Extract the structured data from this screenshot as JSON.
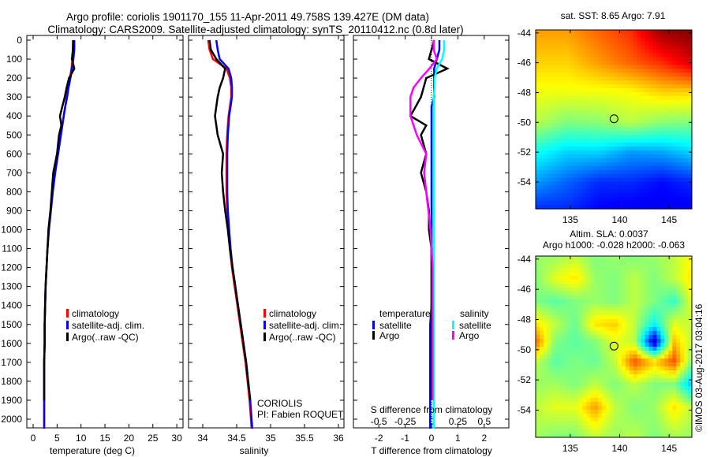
{
  "title": {
    "line1": "Argo profile: coriolis 1901170_155 11-Apr-2011 49.758S 139.427E (DM data)",
    "line2": "Climatology: CARS2009. Satellite-adjusted climatology: synTS_20110412.nc (0.8d later)"
  },
  "colors": {
    "climatology": "#ff0000",
    "satellite": "#0000ff",
    "argo": "#000000",
    "sal_sat": "#00ffff",
    "sal_argo": "#ff00ff"
  },
  "chart_data": [
    {
      "type": "line",
      "name": "temperature",
      "xlabel": "temperature (deg C)",
      "xlim": [
        -1,
        31
      ],
      "xticks": [
        0,
        5,
        10,
        15,
        20,
        25,
        30
      ],
      "ylim": [
        0,
        2050
      ],
      "yticks": [
        0,
        100,
        200,
        300,
        400,
        500,
        600,
        700,
        800,
        900,
        1000,
        1100,
        1200,
        1300,
        1400,
        1500,
        1600,
        1700,
        1800,
        1900,
        2000
      ],
      "depth": [
        0,
        50,
        100,
        150,
        200,
        250,
        300,
        350,
        400,
        450,
        500,
        600,
        700,
        800,
        900,
        1000,
        1100,
        1200,
        1300,
        1400,
        1500,
        1600,
        1700,
        1800,
        1900,
        2000,
        2050
      ],
      "legend": [
        "climatology",
        "satellite-adj. clim.",
        "Argo(..raw -QC)"
      ],
      "series": [
        {
          "name": "climatology",
          "color": "#ff0000",
          "values": [
            8.3,
            8.3,
            8.2,
            8.0,
            7.7,
            7.3,
            7.0,
            6.7,
            6.4,
            6.1,
            5.8,
            5.2,
            4.6,
            4.1,
            3.7,
            3.3,
            3.0,
            2.8,
            2.6,
            2.5,
            2.4,
            2.4,
            2.3,
            2.3,
            2.3,
            2.3,
            2.3
          ]
        },
        {
          "name": "satellite-adj. clim.",
          "color": "#0000ff",
          "values": [
            8.6,
            8.6,
            8.4,
            8.1,
            7.8,
            7.4,
            7.1,
            6.7,
            6.4,
            6.1,
            5.8,
            5.2,
            4.6,
            4.1,
            3.7,
            3.3,
            3.0,
            2.8,
            2.6,
            2.5,
            2.4,
            2.4,
            2.3,
            2.3,
            2.3,
            2.3,
            2.3
          ]
        },
        {
          "name": "Argo(..raw -QC)",
          "color": "#000000",
          "values": [
            8.4,
            8.3,
            8.1,
            8.6,
            7.5,
            7.0,
            6.6,
            6.1,
            5.6,
            5.9,
            5.4,
            5.0,
            4.2,
            3.9,
            3.6,
            3.2,
            3.0,
            2.8,
            2.6,
            2.5,
            2.4,
            2.4,
            2.3,
            2.3,
            2.3
          ]
        }
      ]
    },
    {
      "type": "line",
      "name": "salinity",
      "xlabel": "salinity",
      "xlim": [
        33.8,
        36.1
      ],
      "xticks": [
        34,
        34.5,
        35,
        35.5,
        36
      ],
      "annotation": [
        "CORIOLIS",
        "PI: Fabien ROQUET"
      ],
      "legend": [
        "climatology",
        "satellite-adj. clim.",
        "Argo(..raw -QC)"
      ],
      "series": [
        {
          "name": "climatology",
          "color": "#ff0000",
          "values": [
            34.08,
            34.1,
            34.15,
            34.35,
            34.4,
            34.42,
            34.42,
            34.4,
            34.38,
            34.37,
            34.36,
            34.35,
            34.35,
            34.35,
            34.36,
            34.38,
            34.4,
            34.43,
            34.47,
            34.51,
            34.55,
            34.59,
            34.63,
            34.66,
            34.69,
            34.71,
            34.72
          ]
        },
        {
          "name": "satellite-adj. clim.",
          "color": "#0000ff",
          "values": [
            34.2,
            34.22,
            34.25,
            34.38,
            34.42,
            34.43,
            34.43,
            34.41,
            34.39,
            34.38,
            34.37,
            34.36,
            34.36,
            34.36,
            34.37,
            34.39,
            34.41,
            34.44,
            34.48,
            34.52,
            34.56,
            34.6,
            34.64,
            34.67,
            34.7,
            34.72,
            34.73
          ]
        },
        {
          "name": "Argo(..raw -QC)",
          "color": "#000000",
          "values": [
            34.1,
            34.12,
            34.2,
            34.33,
            34.3,
            34.25,
            34.22,
            34.2,
            34.18,
            34.2,
            34.22,
            34.3,
            34.28,
            34.3,
            34.33,
            34.37,
            34.4,
            34.44,
            34.48,
            34.52,
            34.56,
            34.6,
            34.64,
            34.67,
            34.7
          ]
        }
      ]
    },
    {
      "type": "line",
      "name": "difference",
      "xlabel": "T difference from climatology",
      "x2label": "S difference from climatology",
      "xlim": [
        -3,
        3
      ],
      "xticks": [
        -2,
        -1,
        0,
        1,
        2
      ],
      "x2ticks": [
        "-0.5",
        "-0.25",
        "0",
        "0.25",
        "0.5"
      ],
      "x2values": [
        -0.5,
        -0.25,
        0,
        0.25,
        0.5
      ],
      "legend": {
        "t_head": "temperature",
        "s_head": "salinity",
        "sat": "satellite",
        "argo": "Argo"
      },
      "series": [
        {
          "name": "T satellite",
          "axis": "T",
          "color": "#0000ff",
          "values": [
            0.3,
            0.3,
            0.2,
            0.1,
            0.1,
            0.1,
            0.1,
            0.0,
            0.0,
            0.0,
            0.0,
            0.0,
            0.0,
            0.0,
            0.0,
            0.0,
            0.0,
            0.0,
            0.0,
            0.0,
            -0.05,
            -0.05,
            -0.05,
            -0.05,
            -0.05,
            -0.05,
            -0.05
          ]
        },
        {
          "name": "T Argo",
          "axis": "T",
          "color": "#000000",
          "values": [
            0.1,
            0.0,
            -0.1,
            0.6,
            -0.2,
            -0.3,
            -0.4,
            -0.6,
            -0.8,
            -0.2,
            -0.4,
            -0.2,
            -0.4,
            -0.2,
            -0.1,
            -0.1,
            0,
            0,
            0,
            0,
            0,
            0,
            0,
            0,
            0
          ]
        },
        {
          "name": "S satellite",
          "axis": "S",
          "color": "#00ffff",
          "values": [
            0.12,
            0.12,
            0.1,
            0.05,
            0.03,
            0.03,
            0.02,
            0.02,
            0.02,
            0.02,
            0.02,
            0.02,
            0.02,
            0.02,
            0.02,
            0.02,
            0.02,
            0.02,
            0.02,
            0.02,
            0.02,
            0.02,
            0.02,
            0.02,
            0.02,
            0.02,
            0.02
          ]
        },
        {
          "name": "S Argo",
          "axis": "S",
          "color": "#ff00ff",
          "values": [
            0.02,
            0.02,
            0.05,
            -0.02,
            -0.1,
            -0.17,
            -0.2,
            -0.2,
            -0.2,
            -0.17,
            -0.14,
            -0.05,
            -0.07,
            -0.05,
            -0.03,
            -0.01,
            0,
            0.01,
            0.01,
            0.01,
            0.01,
            0.01,
            0.01,
            0.01,
            0.01
          ]
        }
      ]
    },
    {
      "type": "heatmap",
      "name": "sst-map",
      "title": "sat. SST: 8.65 Argo: 7.91",
      "xticks": [
        135,
        140,
        145
      ],
      "yticks": [
        -44,
        -46,
        -48,
        -50,
        -52,
        -54
      ],
      "xlim": [
        131.5,
        147.3
      ],
      "ylim": [
        -55.8,
        -43.8
      ],
      "vmin": 3,
      "vmax": 12,
      "marker": {
        "lon": 139.427,
        "lat": -49.758
      },
      "lons": [
        131.5,
        134.7,
        137.9,
        141.1,
        144.3,
        147.3
      ],
      "lats": [
        -43.8,
        -46,
        -48,
        -50,
        -52,
        -54,
        -55.8
      ],
      "grid": [
        [
          9.5,
          9.5,
          10,
          10.5,
          11.8,
          12
        ],
        [
          9,
          9,
          9.5,
          10,
          10.5,
          11.2
        ],
        [
          8.5,
          8.5,
          8.5,
          8.6,
          9,
          9
        ],
        [
          8,
          7.5,
          7.6,
          8,
          7.6,
          7.5
        ],
        [
          6.5,
          6,
          6,
          5.5,
          5.6,
          6
        ],
        [
          5.5,
          5,
          4.5,
          4.5,
          4.2,
          4.5
        ],
        [
          4.5,
          4.5,
          4.1,
          4,
          4,
          4
        ]
      ]
    },
    {
      "type": "heatmap",
      "name": "sla-map",
      "title": "Altim. SLA: 0.0037",
      "subtitle": "Argo h1000: -0.028 h2000: -0.063",
      "xticks": [
        135,
        140,
        145
      ],
      "yticks": [
        -44,
        -46,
        -48,
        -50,
        -52,
        -54
      ],
      "xlim": [
        131.5,
        147.3
      ],
      "ylim": [
        -55.8,
        -43.8
      ],
      "vmin": -0.4,
      "vmax": 0.4,
      "marker": {
        "lon": 139.427,
        "lat": -49.758
      },
      "lons": [
        131.5,
        133.5,
        135.5,
        137.5,
        139.5,
        141.5,
        143.5,
        145.5,
        147.3
      ],
      "lats": [
        -43.8,
        -45.3,
        -46.8,
        -48.3,
        -49.5,
        -50.8,
        -52.3,
        -53.8,
        -55.8
      ],
      "grid": [
        [
          0.02,
          0.02,
          0.05,
          0,
          0.02,
          0,
          0.02,
          0.05,
          0.1
        ],
        [
          0,
          0.08,
          0.12,
          0.02,
          0,
          0.05,
          0,
          0.05,
          0.12
        ],
        [
          0,
          -0.03,
          0,
          0.02,
          0,
          0.05,
          0,
          -0.06,
          0.08
        ],
        [
          0.12,
          0.05,
          -0.02,
          0.12,
          0.14,
          0.05,
          -0.1,
          0.08,
          0.05
        ],
        [
          0.22,
          0,
          -0.03,
          0,
          0.08,
          0.05,
          -0.36,
          0.15,
          0.05
        ],
        [
          0.05,
          -0.03,
          0,
          -0.02,
          0.05,
          0.24,
          0.14,
          0.24,
          0
        ],
        [
          0.02,
          0.03,
          0,
          0.05,
          0,
          0.05,
          0,
          0,
          -0.15
        ],
        [
          0.05,
          0.08,
          0.08,
          0.18,
          0.05,
          0,
          0.02,
          0.12,
          0.05
        ],
        [
          0.03,
          0,
          0,
          0.05,
          0.02,
          0.05,
          0,
          0.03,
          0.02
        ]
      ]
    }
  ],
  "copyright": "©IMOS 03-Aug-2017 03:04:16"
}
